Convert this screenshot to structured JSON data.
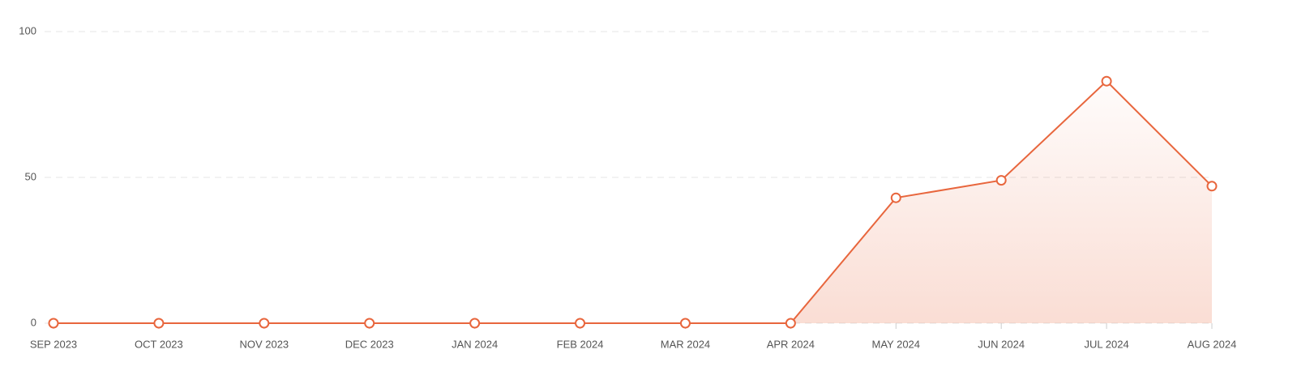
{
  "chart_data": {
    "type": "line",
    "categories": [
      "SEP 2023",
      "OCT 2023",
      "NOV 2023",
      "DEC 2023",
      "JAN 2024",
      "FEB 2024",
      "MAR 2024",
      "APR 2024",
      "MAY 2024",
      "JUN 2024",
      "JUL 2024",
      "AUG 2024"
    ],
    "values": [
      0,
      0,
      0,
      0,
      0,
      0,
      0,
      0,
      43,
      49,
      83,
      47
    ],
    "color": "#e8663d",
    "area": true,
    "ylim": [
      0,
      100
    ],
    "yticks": [
      0,
      50,
      100
    ],
    "grid": true
  }
}
